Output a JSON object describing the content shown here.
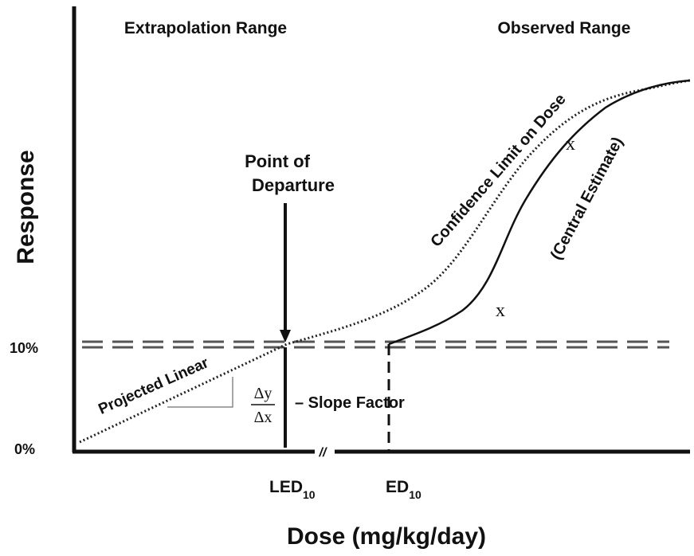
{
  "header": {
    "left": "Extrapolation Range",
    "right": "Observed Range"
  },
  "axes": {
    "y_label": "Response",
    "y_ticks": [
      "10%",
      "0%"
    ],
    "x_label": "Dose (mg/kg/day)",
    "break": "//"
  },
  "point_of_departure": {
    "lines": [
      "Point of",
      "Departure"
    ]
  },
  "curves": {
    "confidence": "Confidence Limit on Dose",
    "central": "(Central Estimate)",
    "projected": "Projected Linear"
  },
  "markers": [
    "x",
    "x"
  ],
  "slope": {
    "dy": "Δy",
    "dx": "Δx",
    "label": "– Slope Factor"
  },
  "x_labels": {
    "led": {
      "main": "LED",
      "sub": "10"
    },
    "ed": {
      "main": "ED",
      "sub": "10"
    }
  }
}
